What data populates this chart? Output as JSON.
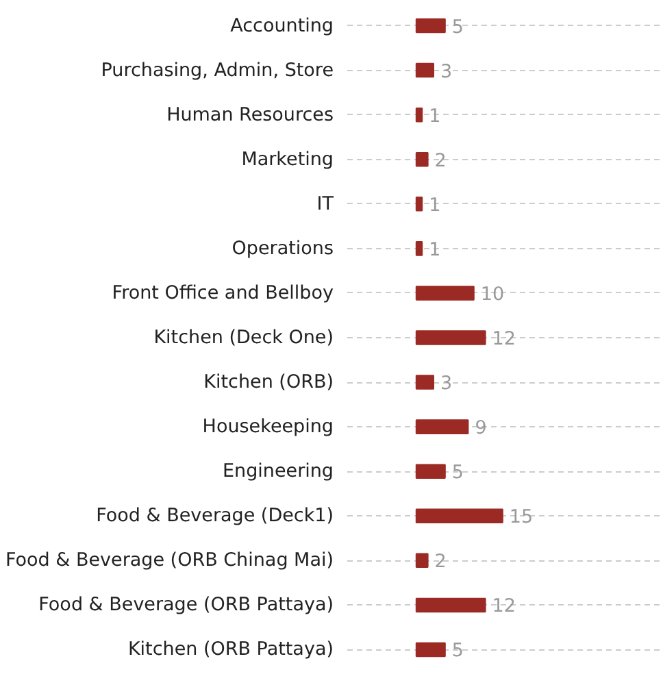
{
  "chart_data": {
    "type": "bar",
    "orientation": "horizontal",
    "categories": [
      "Accounting",
      "Purchasing, Admin, Store",
      "Human Resources",
      "Marketing",
      "IT",
      "Operations",
      "Front Office and Bellboy",
      "Kitchen (Deck One)",
      "Kitchen (ORB)",
      "Housekeeping",
      "Engineering",
      "Food & Beverage (Deck1)",
      "Food & Beverage (ORB Chinag Mai)",
      "Food & Beverage (ORB Pattaya)",
      "Kitchen (ORB Pattaya)"
    ],
    "values": [
      5,
      3,
      1,
      2,
      1,
      1,
      10,
      12,
      3,
      9,
      5,
      15,
      2,
      12,
      5
    ],
    "color": "#9b2a25",
    "xlim": [
      -12,
      43
    ],
    "grid": "y",
    "tick_labels": "y",
    "data_labels": true
  }
}
